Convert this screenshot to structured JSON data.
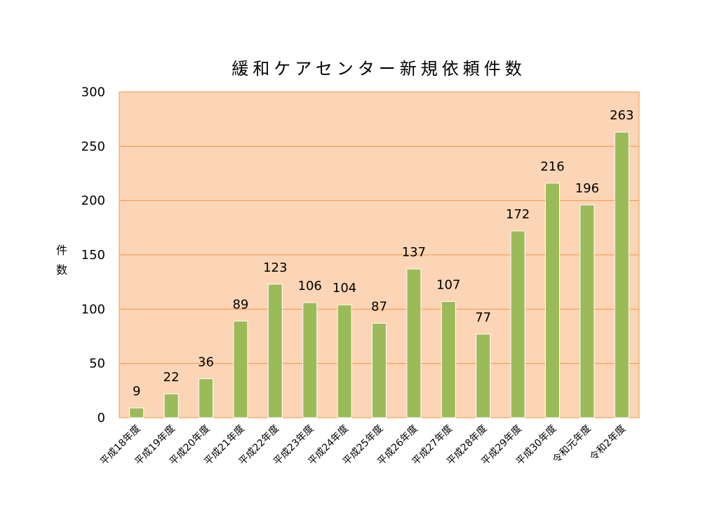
{
  "chart_data": {
    "type": "bar",
    "title": "緩和ケアセンター新規依頼件数",
    "ylabel": [
      "件",
      "数"
    ],
    "xlabel": "",
    "categories": [
      "平成18年度",
      "平成19年度",
      "平成20年度",
      "平成21年度",
      "平成22年度",
      "平成23年度",
      "平成24年度",
      "平成25年度",
      "平成26年度",
      "平成27年度",
      "平成28年度",
      "平成29年度",
      "平成30年度",
      "令和元年度",
      "令和2年度"
    ],
    "values": [
      9,
      22,
      36,
      89,
      123,
      106,
      104,
      87,
      137,
      107,
      77,
      172,
      216,
      196,
      263
    ],
    "ylim": [
      0,
      300
    ],
    "yticks": [
      0,
      50,
      100,
      150,
      200,
      250,
      300
    ],
    "grid": true,
    "legend": "none",
    "colors": {
      "bar": "#9BBB59",
      "plot_background": "#FBD5B5",
      "gridline": "#F79646",
      "plot_border": "#F79646"
    }
  }
}
